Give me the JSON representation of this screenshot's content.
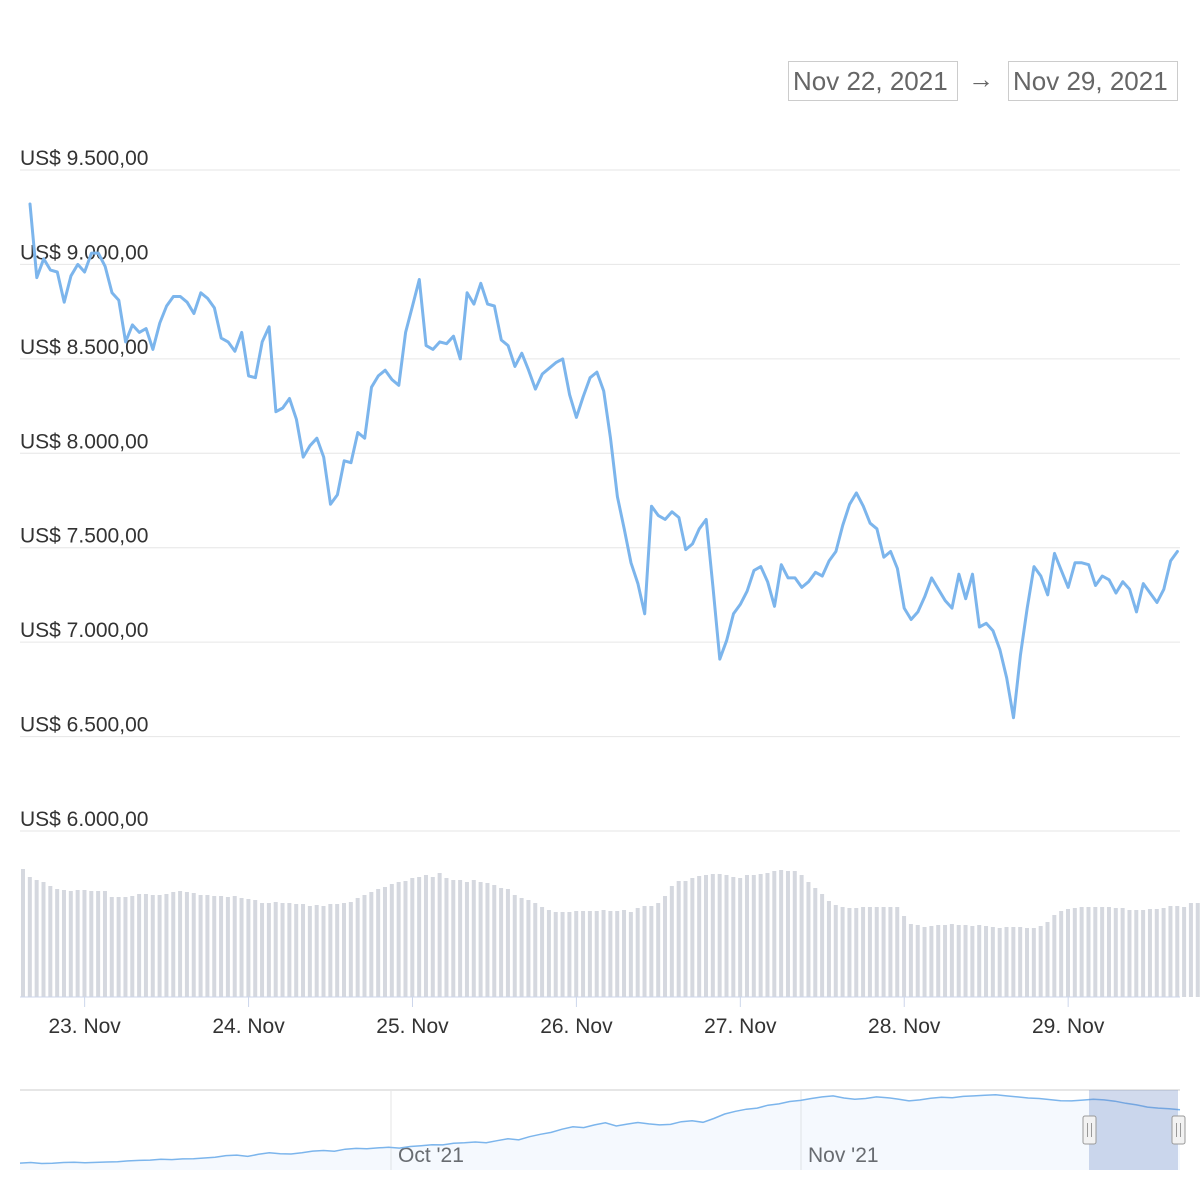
{
  "range_selector": {
    "from": "Nov 22, 2021",
    "arrow": "→",
    "to": "Nov 29, 2021"
  },
  "colors": {
    "line": "#7cb5ec",
    "volume": "#d5d8df",
    "grid": "#e6e6e6",
    "navigator_mask": "rgba(102,133,194,0.3)"
  },
  "navigator": {
    "labels": [
      "Oct '21",
      "Nov '21"
    ],
    "values": [
      7520,
      7560,
      7490,
      7510,
      7560,
      7580,
      7540,
      7570,
      7600,
      7620,
      7680,
      7720,
      7740,
      7800,
      7780,
      7830,
      7850,
      7900,
      7960,
      8080,
      8120,
      8020,
      8180,
      8300,
      8220,
      8200,
      8290,
      8420,
      8460,
      8410,
      8560,
      8620,
      8600,
      8660,
      8700,
      8640,
      8760,
      8820,
      8900,
      8880,
      9000,
      9040,
      9100,
      9050,
      9200,
      9350,
      9260,
      9500,
      9680,
      9820,
      10060,
      10240,
      10180,
      10380,
      10540,
      10300,
      10440,
      10560,
      10460,
      10380,
      10420,
      10620,
      10700,
      10580,
      10860,
      11200,
      11400,
      11560,
      11640,
      11860,
      11960,
      12140,
      12220,
      12360,
      12480,
      12560,
      12400,
      12300,
      12360,
      12480,
      12420,
      12320,
      12180,
      12260,
      12380,
      12460,
      12420,
      12520,
      12560,
      12600,
      12640,
      12560,
      12480,
      12400,
      12360,
      12280,
      12200,
      12180,
      12240,
      12300,
      12260,
      12160,
      12000,
      11880,
      11720,
      11640,
      11600,
      11520
    ]
  },
  "chart_data": {
    "type": "line",
    "title": "",
    "xlabel": "",
    "ylabel": "",
    "x_tick_labels": [
      "23. Nov",
      "24. Nov",
      "25. Nov",
      "26. Nov",
      "27. Nov",
      "28. Nov",
      "29. Nov"
    ],
    "y_tick_labels": [
      "US$ 9.500,00",
      "US$ 9.000,00",
      "US$ 8.500,00",
      "US$ 8.000,00",
      "US$ 7.500,00",
      "US$ 7.000,00",
      "US$ 6.500,00",
      "US$ 6.000,00"
    ],
    "y_ticks": [
      9500,
      9000,
      8500,
      8000,
      7500,
      7000,
      6500,
      6000
    ],
    "ylim": [
      6000,
      9500
    ],
    "x_start": "Nov 22, 2021",
    "x_end": "Nov 29, 2021",
    "points_per_day": 24,
    "grid": true,
    "series": [
      {
        "values": [
          9320,
          8930,
          9030,
          8970,
          8960,
          8800,
          8940,
          9000,
          8960,
          9060,
          9060,
          8990,
          8850,
          8810,
          8590,
          8680,
          8640,
          8660,
          8550,
          8690,
          8780,
          8830,
          8830,
          8800,
          8740,
          8850,
          8820,
          8770,
          8610,
          8590,
          8540,
          8640,
          8410,
          8400,
          8590,
          8670,
          8220,
          8240,
          8290,
          8180,
          7980,
          8040,
          8080,
          7980,
          7730,
          7780,
          7960,
          7950,
          8110,
          8080,
          8350,
          8410,
          8440,
          8390,
          8360,
          8640,
          8780,
          8920,
          8570,
          8550,
          8590,
          8580,
          8620,
          8500,
          8850,
          8790,
          8900,
          8790,
          8780,
          8600,
          8570,
          8460,
          8530,
          8440,
          8340,
          8420,
          8450,
          8480,
          8500,
          8310,
          8190,
          8300,
          8400,
          8430,
          8330,
          8080,
          7770,
          7600,
          7420,
          7310,
          7150,
          7720,
          7670,
          7650,
          7690,
          7660,
          7490,
          7520,
          7600,
          7650,
          7290,
          6910,
          7010,
          7150,
          7200,
          7270,
          7380,
          7400,
          7320,
          7190,
          7410,
          7340,
          7340,
          7290,
          7320,
          7370,
          7350,
          7430,
          7480,
          7620,
          7730,
          7790,
          7720,
          7630,
          7600,
          7450,
          7480,
          7390,
          7180,
          7120,
          7160,
          7240,
          7340,
          7280,
          7220,
          7180,
          7360,
          7230,
          7360,
          7080,
          7100,
          7060,
          6960,
          6810,
          6600,
          6930,
          7180,
          7400,
          7350,
          7250,
          7470,
          7380,
          7290,
          7420,
          7420,
          7410,
          7300,
          7350,
          7330,
          7260,
          7320,
          7280,
          7160,
          7310,
          7260,
          7210,
          7280,
          7430,
          7480
        ]
      },
      {
        "name": "",
        "type": "column",
        "values": [
          1280,
          1200,
          1170,
          1150,
          1110,
          1080,
          1070,
          1060,
          1070,
          1070,
          1060,
          1060,
          1060,
          1000,
          1000,
          1000,
          1010,
          1030,
          1030,
          1020,
          1020,
          1030,
          1050,
          1060,
          1050,
          1040,
          1020,
          1020,
          1010,
          1010,
          1000,
          1010,
          990,
          980,
          970,
          940,
          940,
          950,
          940,
          940,
          930,
          930,
          910,
          920,
          910,
          930,
          930,
          940,
          950,
          990,
          1020,
          1050,
          1080,
          1100,
          1130,
          1150,
          1160,
          1190,
          1200,
          1220,
          1200,
          1240,
          1190,
          1170,
          1170,
          1150,
          1170,
          1150,
          1140,
          1120,
          1090,
          1080,
          1020,
          990,
          970,
          940,
          900,
          870,
          850,
          850,
          850,
          860,
          860,
          860,
          860,
          870,
          860,
          860,
          870,
          850,
          890,
          910,
          910,
          940,
          1010,
          1110,
          1160,
          1160,
          1190,
          1210,
          1220,
          1230,
          1230,
          1220,
          1200,
          1190,
          1220,
          1220,
          1230,
          1240,
          1260,
          1270,
          1260,
          1260,
          1220,
          1150,
          1090,
          1030,
          960,
          920,
          900,
          890,
          890,
          900,
          900,
          900,
          900,
          900,
          900,
          810,
          730,
          720,
          700,
          710,
          720,
          720,
          730,
          720,
          720,
          710,
          720,
          710,
          700,
          690,
          700,
          700,
          700,
          690,
          690,
          710,
          750,
          820,
          860,
          880,
          890,
          900,
          900,
          900,
          900,
          900,
          890,
          890,
          870,
          870,
          870,
          880,
          880,
          890,
          910,
          910,
          900,
          940,
          940
        ]
      }
    ]
  }
}
